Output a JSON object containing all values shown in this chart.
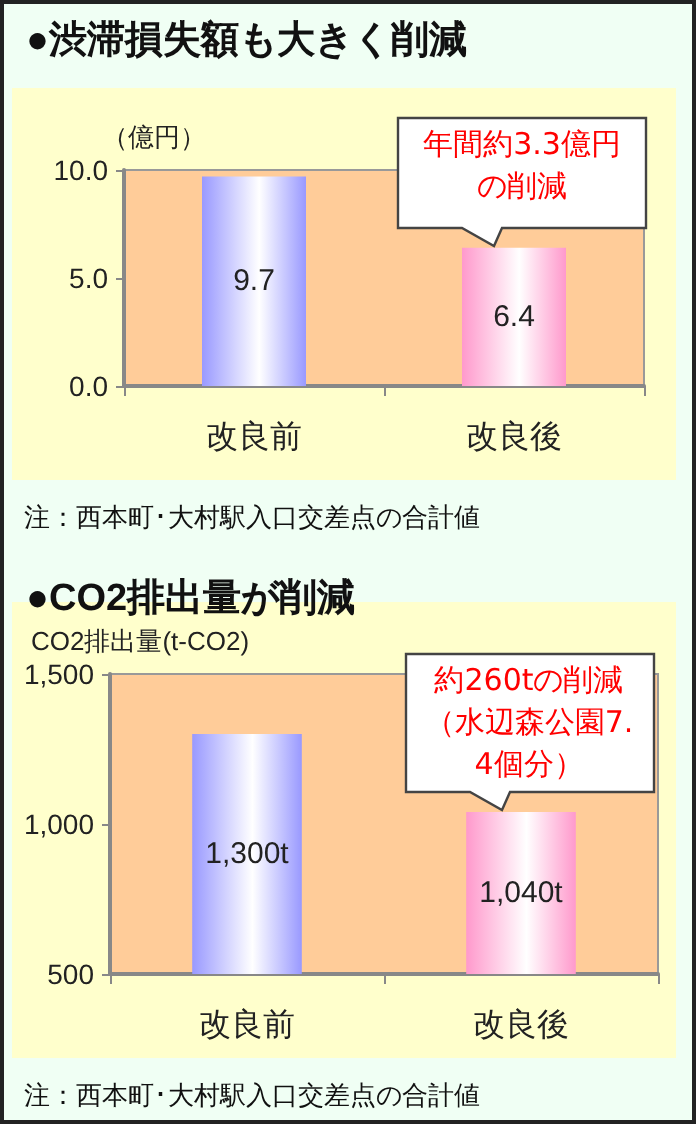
{
  "chart_data": [
    {
      "type": "bar",
      "title": "●渋滞損失額も大きく削減",
      "ylabel": "（億円）",
      "categories": [
        "改良前",
        "改良後"
      ],
      "values": [
        9.7,
        6.4
      ],
      "colors": [
        "#9999ff",
        "#ff99cc"
      ],
      "ylim": [
        0,
        10
      ],
      "yticks": [
        {
          "value": 0,
          "label": "0.0"
        },
        {
          "value": 5,
          "label": "5.0"
        },
        {
          "value": 10,
          "label": "10.0"
        }
      ],
      "data_labels": true,
      "grid": false,
      "annotations": [
        "年間約3.3億円の削減",
        "注：西本町･大村駅入口交差点の合計値"
      ]
    },
    {
      "type": "bar",
      "title": "●CO2排出量が削減",
      "ylabel": "CO2排出量(t-CO2)",
      "categories": [
        "改良前",
        "改良後"
      ],
      "values": [
        1300,
        1040
      ],
      "value_labels": [
        "1,300t",
        "1,040t"
      ],
      "colors": [
        "#9999ff",
        "#ff99cc"
      ],
      "ylim": [
        500,
        1500
      ],
      "yticks": [
        {
          "value": 500,
          "label": "500"
        },
        {
          "value": 1000,
          "label": "1,000"
        },
        {
          "value": 1500,
          "label": "1,500"
        }
      ],
      "grid": false,
      "annotations": [
        "約260tの削減（水辺森公園7.4個分）",
        "注：西本町･大村駅入口交差点の合計値"
      ]
    }
  ]
}
